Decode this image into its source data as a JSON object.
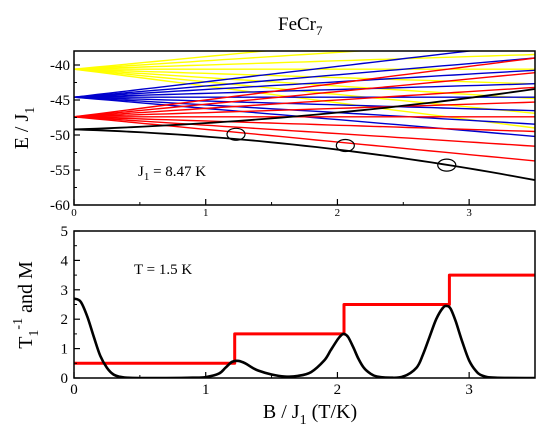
{
  "chart_data": [
    {
      "type": "line",
      "title": "FeCr",
      "title_sub": "7",
      "ylabel": "E / J",
      "ylabel_sub": "1",
      "xlabel": "",
      "xlim": [
        0,
        3.5
      ],
      "ylim": [
        -60,
        -38
      ],
      "xticks": [
        "0",
        "1",
        "2",
        "3"
      ],
      "yticks": [
        "-40",
        "-45",
        "-50",
        "-55",
        "-60"
      ],
      "annotation": {
        "prefix": "J",
        "sub": "1",
        "suffix": " =  8.47 K"
      },
      "circle_marks": [
        {
          "x": 1.23,
          "y": -49.9
        },
        {
          "x": 2.06,
          "y": -51.5
        },
        {
          "x": 2.83,
          "y": -54.3
        }
      ],
      "colors": {
        "black": "#000000",
        "red": "#ff0000",
        "blue": "#0000cc",
        "yellow": "#ffff00"
      },
      "series": [
        {
          "color": "yellow",
          "y0": -40.6,
          "slopes": [
            1.8,
            1.2,
            0.6,
            0.0,
            -0.6,
            -1.2,
            -1.8,
            -2.4
          ]
        },
        {
          "color": "blue",
          "y0": -44.6,
          "slopes": [
            2.2,
            1.6,
            1.1,
            0.55,
            0.0,
            -0.55,
            -1.1,
            -1.6
          ]
        },
        {
          "color": "red",
          "y0": -47.4,
          "slopes": [
            2.4,
            1.8,
            1.2,
            0.6,
            0.0,
            -0.6,
            -1.2,
            -1.8
          ]
        },
        {
          "color": "black",
          "y0": -49.2,
          "slopes": [
            0.6,
            -0.6
          ],
          "curvature": [
            0.3,
            -0.42
          ]
        }
      ]
    },
    {
      "type": "line",
      "title": "",
      "ylabel": "T",
      "ylabel_sub": "1",
      "ylabel_sup": "-1",
      "ylabel_suffix": " and M",
      "xlabel": "B / J",
      "xlabel_sub": "1",
      "xlabel_suffix": " (T/K)",
      "xlim": [
        0,
        3.5
      ],
      "ylim": [
        0,
        5
      ],
      "xticks": [
        "0",
        "1",
        "2",
        "3"
      ],
      "yticks": [
        "0",
        "1",
        "2",
        "3",
        "4",
        "5"
      ],
      "annotation": {
        "text": "T = 1.5 K"
      },
      "series": [
        {
          "name": "",
          "color": "red",
          "kind": "step",
          "x": [
            0,
            1.22,
            1.22,
            2.05,
            2.05,
            2.85,
            2.85,
            3.5
          ],
          "y": [
            0.5,
            0.5,
            1.5,
            1.5,
            2.5,
            2.5,
            3.5,
            3.5
          ]
        },
        {
          "name": "",
          "color": "black",
          "kind": "smooth",
          "x": [
            0,
            0.05,
            0.1,
            0.15,
            0.2,
            0.25,
            0.3,
            0.35,
            0.4,
            0.5,
            0.7,
            0.9,
            1.0,
            1.1,
            1.15,
            1.2,
            1.25,
            1.3,
            1.35,
            1.4,
            1.5,
            1.6,
            1.7,
            1.8,
            1.9,
            1.95,
            2.0,
            2.03,
            2.05,
            2.08,
            2.12,
            2.16,
            2.2,
            2.25,
            2.3,
            2.4,
            2.5,
            2.6,
            2.65,
            2.7,
            2.75,
            2.8,
            2.83,
            2.86,
            2.9,
            2.95,
            3.0,
            3.05,
            3.1,
            3.2,
            3.5
          ],
          "y": [
            2.7,
            2.6,
            2.1,
            1.4,
            0.75,
            0.35,
            0.12,
            0.04,
            0.01,
            0.0,
            0.0,
            0.01,
            0.03,
            0.15,
            0.35,
            0.55,
            0.58,
            0.5,
            0.36,
            0.25,
            0.12,
            0.05,
            0.07,
            0.2,
            0.6,
            0.95,
            1.3,
            1.46,
            1.5,
            1.4,
            1.05,
            0.65,
            0.35,
            0.15,
            0.05,
            0.01,
            0.05,
            0.35,
            0.8,
            1.4,
            2.0,
            2.38,
            2.45,
            2.35,
            1.9,
            1.2,
            0.6,
            0.25,
            0.08,
            0.01,
            0.0
          ]
        }
      ]
    }
  ]
}
